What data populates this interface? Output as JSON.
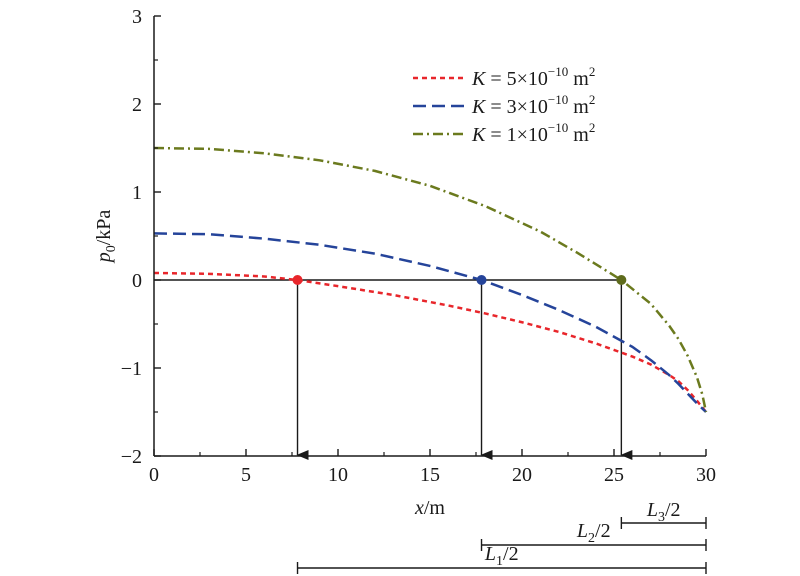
{
  "chart_data": {
    "type": "line",
    "xlabel": {
      "var": "x",
      "unit": "/m"
    },
    "ylabel": {
      "var": "p",
      "sub": "0",
      "unit": "/kPa"
    },
    "xlim": [
      0,
      30
    ],
    "ylim": [
      -2,
      3
    ],
    "xticks": [
      0,
      5,
      10,
      15,
      20,
      25,
      30
    ],
    "yticks": [
      -2,
      -1,
      0,
      1,
      2,
      3
    ],
    "xtick_labels": [
      "0",
      "5",
      "10",
      "15",
      "20",
      "25",
      "30"
    ],
    "ytick_labels": [
      "−2",
      "−1",
      "0",
      "1",
      "2",
      "3"
    ],
    "grid": false,
    "legend_position": "top-right",
    "series": [
      {
        "name": "K = 5×10⁻¹⁰ m²",
        "legend": {
          "var": "K",
          "coef": " = 5×10",
          "exp": "−10",
          "unit": " m",
          "unit_exp": "2"
        },
        "color": "#e8262b",
        "dash": "short-dash",
        "x": [
          0,
          3,
          6,
          7.8,
          10,
          13,
          16,
          18,
          20,
          22,
          24,
          26,
          27,
          28,
          28.5,
          29,
          29.5,
          30
        ],
        "y": [
          0.08,
          0.07,
          0.04,
          0.0,
          -0.07,
          -0.17,
          -0.29,
          -0.38,
          -0.48,
          -0.59,
          -0.72,
          -0.87,
          -0.96,
          -1.08,
          -1.15,
          -1.25,
          -1.37,
          -1.5
        ]
      },
      {
        "name": "K = 3×10⁻¹⁰ m²",
        "legend": {
          "var": "K",
          "coef": " = 3×10",
          "exp": "−10",
          "unit": " m",
          "unit_exp": "2"
        },
        "color": "#25449a",
        "dash": "long-dash",
        "x": [
          0,
          3,
          6,
          9,
          12,
          15,
          17.8,
          20,
          22,
          24,
          26,
          27,
          28,
          28.5,
          29,
          29.5,
          30
        ],
        "y": [
          0.53,
          0.52,
          0.47,
          0.4,
          0.3,
          0.16,
          0.0,
          -0.17,
          -0.34,
          -0.53,
          -0.76,
          -0.91,
          -1.08,
          -1.18,
          -1.29,
          -1.4,
          -1.5
        ]
      },
      {
        "name": "K = 1×10⁻¹⁰ m²",
        "legend": {
          "var": "K",
          "coef": " = 1×10",
          "exp": "−10",
          "unit": " m",
          "unit_exp": "2"
        },
        "color": "#6b7a1e",
        "dash": "dash-dot",
        "x": [
          0,
          3,
          6,
          9,
          12,
          15,
          18,
          21,
          23,
          25.4,
          27,
          28,
          28.5,
          29,
          29.5,
          29.8,
          30
        ],
        "y": [
          1.5,
          1.49,
          1.44,
          1.36,
          1.24,
          1.07,
          0.84,
          0.55,
          0.31,
          0.0,
          -0.27,
          -0.52,
          -0.67,
          -0.86,
          -1.1,
          -1.3,
          -1.5
        ]
      }
    ],
    "markers": [
      {
        "x": 7.8,
        "y": 0,
        "color": "#e8262b"
      },
      {
        "x": 17.8,
        "y": 0,
        "color": "#25449a"
      },
      {
        "x": 25.4,
        "y": 0,
        "color": "#5e6b1c"
      }
    ],
    "zero_line": {
      "from_x": 0,
      "to_x": 25.4,
      "y": 0
    },
    "arrows": [
      {
        "x": 7.8,
        "from_y": 0,
        "to_y": -2
      },
      {
        "x": 17.8,
        "from_y": 0,
        "to_y": -2
      },
      {
        "x": 25.4,
        "from_y": 0,
        "to_y": -2
      }
    ],
    "spans": [
      {
        "from_x": 7.8,
        "to_x": 30,
        "label": {
          "var": "L",
          "sub": "1",
          "rest": "/2"
        }
      },
      {
        "from_x": 17.8,
        "to_x": 30,
        "label": {
          "var": "L",
          "sub": "2",
          "rest": "/2"
        }
      },
      {
        "from_x": 25.4,
        "to_x": 30,
        "label": {
          "var": "L",
          "sub": "3",
          "rest": "/2"
        }
      }
    ]
  }
}
